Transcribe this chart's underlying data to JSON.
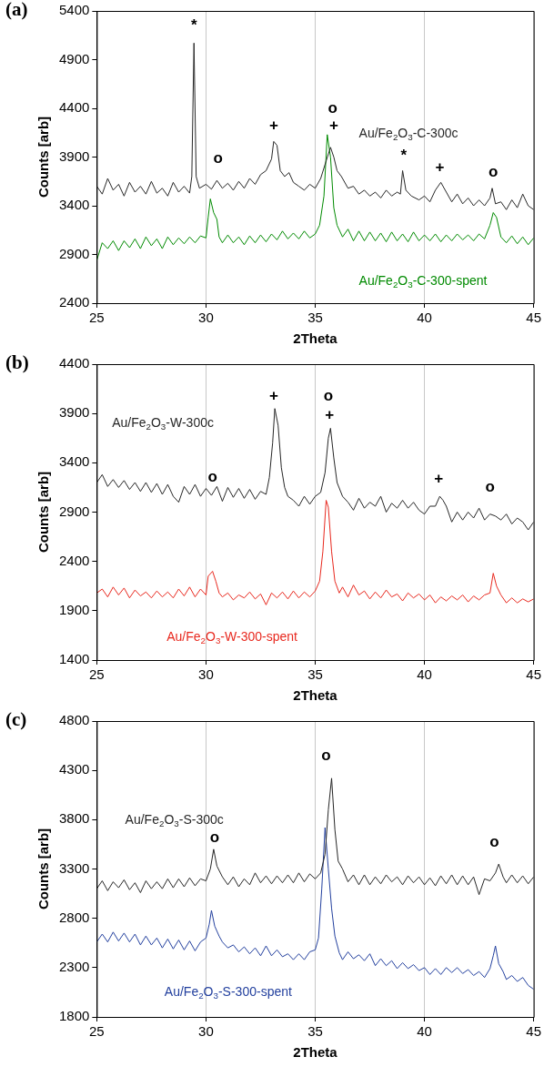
{
  "chart_data": [
    {
      "type": "line",
      "title": "(a)",
      "xlabel": "2Theta",
      "ylabel": "Counts [arb]",
      "xlim": [
        25,
        45
      ],
      "xticks": [
        25,
        30,
        35,
        40,
        45
      ],
      "ylim": [
        2400,
        5400
      ],
      "yticks": [
        2400,
        2900,
        3400,
        3900,
        4400,
        4900,
        5400
      ],
      "grid": "x",
      "series": [
        {
          "name": "Au/Fe$_{2}$O$_{3}$-C-300c",
          "color": "#262626",
          "x": [
            25,
            25.25,
            25.5,
            25.75,
            26,
            26.25,
            26.5,
            26.75,
            27,
            27.25,
            27.5,
            27.75,
            28,
            28.25,
            28.5,
            28.75,
            29,
            29.25,
            29.35,
            29.45,
            29.55,
            29.7,
            30,
            30.25,
            30.5,
            30.75,
            31,
            31.25,
            31.5,
            31.75,
            32,
            32.25,
            32.5,
            32.75,
            33,
            33.1,
            33.25,
            33.4,
            33.6,
            33.8,
            34,
            34.25,
            34.5,
            34.75,
            35,
            35.25,
            35.5,
            35.7,
            35.85,
            36,
            36.2,
            36.5,
            36.75,
            37,
            37.25,
            37.5,
            37.75,
            38,
            38.25,
            38.5,
            38.75,
            38.9,
            39,
            39.15,
            39.4,
            39.75,
            40,
            40.25,
            40.5,
            40.75,
            41,
            41.25,
            41.5,
            41.75,
            42,
            42.25,
            42.5,
            42.75,
            43,
            43.1,
            43.25,
            43.5,
            43.75,
            44,
            44.25,
            44.5,
            44.75,
            45
          ],
          "values": [
            3600,
            3520,
            3680,
            3560,
            3620,
            3500,
            3640,
            3540,
            3600,
            3520,
            3650,
            3530,
            3580,
            3500,
            3640,
            3540,
            3600,
            3530,
            3700,
            5070,
            3700,
            3580,
            3620,
            3570,
            3660,
            3580,
            3630,
            3560,
            3650,
            3580,
            3680,
            3620,
            3720,
            3760,
            3880,
            4060,
            4020,
            3760,
            3700,
            3740,
            3640,
            3600,
            3560,
            3620,
            3580,
            3680,
            3860,
            4000,
            3900,
            3760,
            3700,
            3580,
            3600,
            3520,
            3560,
            3500,
            3540,
            3480,
            3560,
            3500,
            3540,
            3520,
            3760,
            3560,
            3500,
            3460,
            3500,
            3440,
            3560,
            3640,
            3540,
            3440,
            3520,
            3420,
            3480,
            3400,
            3460,
            3400,
            3480,
            3580,
            3420,
            3440,
            3360,
            3460,
            3380,
            3520,
            3400,
            3360
          ]
        },
        {
          "name": "Au/Fe$_{2}$O$_{3}$-C-300-spent",
          "color": "#008a00",
          "x": [
            25,
            25.25,
            25.5,
            25.75,
            26,
            26.25,
            26.5,
            26.75,
            27,
            27.25,
            27.5,
            27.75,
            28,
            28.25,
            28.5,
            28.75,
            29,
            29.25,
            29.5,
            29.75,
            30,
            30.1,
            30.2,
            30.35,
            30.5,
            30.6,
            30.75,
            31,
            31.25,
            31.5,
            31.75,
            32,
            32.25,
            32.5,
            32.75,
            33,
            33.25,
            33.5,
            33.75,
            34,
            34.25,
            34.5,
            34.75,
            35,
            35.2,
            35.4,
            35.55,
            35.7,
            35.85,
            36,
            36.25,
            36.5,
            36.75,
            37,
            37.25,
            37.5,
            37.75,
            38,
            38.25,
            38.5,
            38.75,
            39,
            39.25,
            39.5,
            39.75,
            40,
            40.25,
            40.5,
            40.75,
            41,
            41.25,
            41.5,
            41.75,
            42,
            42.25,
            42.5,
            42.75,
            43,
            43.15,
            43.3,
            43.5,
            43.75,
            44,
            44.25,
            44.5,
            44.75,
            45
          ],
          "values": [
            2840,
            3020,
            2960,
            3040,
            2940,
            3040,
            2970,
            3060,
            2960,
            3080,
            2990,
            3060,
            2960,
            3080,
            3000,
            3070,
            3010,
            3080,
            3020,
            3090,
            3070,
            3280,
            3470,
            3330,
            3260,
            3080,
            3020,
            3100,
            3020,
            3080,
            3000,
            3090,
            3020,
            3100,
            3030,
            3110,
            3050,
            3140,
            3060,
            3120,
            3060,
            3140,
            3070,
            3110,
            3200,
            3500,
            4130,
            3900,
            3380,
            3200,
            3080,
            3160,
            3040,
            3140,
            3040,
            3130,
            3040,
            3120,
            3030,
            3130,
            3040,
            3110,
            3030,
            3130,
            3040,
            3100,
            3040,
            3110,
            3030,
            3100,
            3040,
            3110,
            3050,
            3100,
            3040,
            3110,
            3060,
            3200,
            3330,
            3280,
            3080,
            3020,
            3090,
            3010,
            3080,
            3000,
            3070
          ]
        }
      ],
      "annotations": [
        "*",
        "o",
        "+",
        "o",
        "+",
        "*",
        "+",
        "o"
      ]
    },
    {
      "type": "line",
      "title": "(b)",
      "xlabel": "2Theta",
      "ylabel": "Counts [arb]",
      "xlim": [
        25,
        45
      ],
      "xticks": [
        25,
        30,
        35,
        40,
        45
      ],
      "ylim": [
        1400,
        4400
      ],
      "yticks": [
        1400,
        1900,
        2400,
        2900,
        3400,
        3900,
        4400
      ],
      "grid": "x",
      "series": [
        {
          "name": "Au/Fe$_{2}$O$_{3}$-W-300c",
          "color": "#262626",
          "x": [
            25,
            25.25,
            25.5,
            25.75,
            26,
            26.25,
            26.5,
            26.75,
            27,
            27.25,
            27.5,
            27.75,
            28,
            28.25,
            28.5,
            28.75,
            29,
            29.25,
            29.5,
            29.75,
            30,
            30.25,
            30.5,
            30.75,
            31,
            31.25,
            31.5,
            31.75,
            32,
            32.25,
            32.5,
            32.75,
            32.9,
            33.05,
            33.15,
            33.3,
            33.45,
            33.6,
            33.75,
            34,
            34.25,
            34.5,
            34.75,
            35,
            35.25,
            35.45,
            35.6,
            35.7,
            35.85,
            36,
            36.25,
            36.5,
            36.75,
            37,
            37.25,
            37.5,
            37.75,
            38,
            38.25,
            38.5,
            38.75,
            39,
            39.25,
            39.5,
            39.75,
            40,
            40.25,
            40.5,
            40.7,
            40.85,
            41,
            41.25,
            41.5,
            41.75,
            42,
            42.25,
            42.5,
            42.75,
            43,
            43.25,
            43.5,
            43.75,
            44,
            44.25,
            44.5,
            44.75,
            45
          ],
          "values": [
            3200,
            3280,
            3160,
            3230,
            3150,
            3220,
            3130,
            3200,
            3110,
            3200,
            3100,
            3190,
            3080,
            3180,
            3060,
            3000,
            3160,
            3080,
            3180,
            3060,
            3140,
            3070,
            3160,
            3010,
            3150,
            3050,
            3140,
            3040,
            3130,
            3030,
            3110,
            3080,
            3250,
            3600,
            3950,
            3780,
            3350,
            3150,
            3060,
            3020,
            2960,
            3060,
            2980,
            3060,
            3100,
            3300,
            3650,
            3750,
            3450,
            3200,
            3060,
            3000,
            2920,
            3040,
            2940,
            3000,
            2960,
            3060,
            2900,
            2990,
            2940,
            3020,
            2940,
            3000,
            2920,
            2880,
            2960,
            2960,
            3060,
            3020,
            2960,
            2800,
            2900,
            2820,
            2900,
            2840,
            2940,
            2820,
            2880,
            2860,
            2820,
            2880,
            2780,
            2840,
            2800,
            2720,
            2800
          ]
        },
        {
          "name": "Au/Fe$_{2}$O$_{3}$-W-300-spent",
          "color": "#e8281e",
          "x": [
            25,
            25.25,
            25.5,
            25.75,
            26,
            26.25,
            26.5,
            26.75,
            27,
            27.25,
            27.5,
            27.75,
            28,
            28.25,
            28.5,
            28.75,
            29,
            29.25,
            29.5,
            29.75,
            30,
            30.1,
            30.3,
            30.45,
            30.6,
            30.75,
            31,
            31.25,
            31.5,
            31.75,
            32,
            32.25,
            32.5,
            32.75,
            33,
            33.25,
            33.5,
            33.75,
            34,
            34.25,
            34.5,
            34.75,
            35,
            35.2,
            35.35,
            35.5,
            35.6,
            35.75,
            35.9,
            36.1,
            36.25,
            36.5,
            36.75,
            37,
            37.25,
            37.5,
            37.75,
            38,
            38.25,
            38.5,
            38.75,
            39,
            39.25,
            39.5,
            39.75,
            40,
            40.25,
            40.5,
            40.75,
            41,
            41.25,
            41.5,
            41.75,
            42,
            42.25,
            42.5,
            42.75,
            43,
            43.15,
            43.3,
            43.5,
            43.75,
            44,
            44.25,
            44.5,
            44.75,
            45
          ],
          "values": [
            2080,
            2120,
            2040,
            2140,
            2060,
            2130,
            2030,
            2110,
            2050,
            2090,
            2030,
            2100,
            2040,
            2090,
            2030,
            2120,
            2050,
            2140,
            2040,
            2120,
            2060,
            2250,
            2300,
            2200,
            2080,
            2040,
            2080,
            2010,
            2060,
            2030,
            2090,
            2020,
            2070,
            1960,
            2080,
            2030,
            2090,
            2020,
            2100,
            2030,
            2090,
            2040,
            2100,
            2200,
            2500,
            3020,
            2950,
            2500,
            2200,
            2080,
            2140,
            2040,
            2160,
            2060,
            2100,
            2020,
            2090,
            2030,
            2110,
            2040,
            2070,
            2000,
            2080,
            2030,
            2070,
            2010,
            2060,
            1980,
            2040,
            2000,
            2050,
            2010,
            2060,
            1990,
            2050,
            2010,
            2060,
            2080,
            2280,
            2150,
            2060,
            1980,
            2030,
            1980,
            2020,
            1990,
            2020
          ]
        }
      ],
      "annotations": [
        "o",
        "+",
        "o",
        "+",
        "+",
        "o"
      ]
    },
    {
      "type": "line",
      "title": "(c)",
      "xlabel": "2Theta",
      "ylabel": "Counts [arb]",
      "xlim": [
        25,
        45
      ],
      "xticks": [
        25,
        30,
        35,
        40,
        45
      ],
      "ylim": [
        1800,
        4800
      ],
      "yticks": [
        1800,
        2300,
        2800,
        3300,
        3800,
        4300,
        4800
      ],
      "grid": "x",
      "series": [
        {
          "name": "Au/Fe$_{2}$O$_{3}$-S-300c",
          "color": "#262626",
          "x": [
            25,
            25.25,
            25.5,
            25.75,
            26,
            26.25,
            26.5,
            26.75,
            27,
            27.25,
            27.5,
            27.75,
            28,
            28.25,
            28.5,
            28.75,
            29,
            29.25,
            29.5,
            29.75,
            30,
            30.2,
            30.35,
            30.5,
            30.75,
            31,
            31.25,
            31.5,
            31.75,
            32,
            32.25,
            32.5,
            32.75,
            33,
            33.25,
            33.5,
            33.75,
            34,
            34.25,
            34.5,
            34.75,
            35,
            35.25,
            35.45,
            35.6,
            35.75,
            35.9,
            36.05,
            36.25,
            36.5,
            36.75,
            37,
            37.25,
            37.5,
            37.75,
            38,
            38.25,
            38.5,
            38.75,
            39,
            39.25,
            39.5,
            39.75,
            40,
            40.25,
            40.5,
            40.75,
            41,
            41.25,
            41.5,
            41.75,
            42,
            42.25,
            42.5,
            42.75,
            43,
            43.25,
            43.4,
            43.6,
            43.75,
            44,
            44.25,
            44.5,
            44.75,
            45
          ],
          "values": [
            3100,
            3180,
            3080,
            3170,
            3110,
            3190,
            3090,
            3160,
            3060,
            3180,
            3100,
            3170,
            3100,
            3200,
            3110,
            3200,
            3120,
            3210,
            3130,
            3200,
            3180,
            3300,
            3500,
            3330,
            3220,
            3140,
            3220,
            3120,
            3200,
            3140,
            3260,
            3160,
            3230,
            3150,
            3230,
            3160,
            3240,
            3160,
            3260,
            3170,
            3250,
            3200,
            3260,
            3450,
            3900,
            4220,
            3700,
            3380,
            3300,
            3170,
            3240,
            3140,
            3240,
            3140,
            3220,
            3150,
            3240,
            3170,
            3220,
            3140,
            3230,
            3160,
            3220,
            3140,
            3210,
            3130,
            3230,
            3150,
            3240,
            3140,
            3230,
            3140,
            3220,
            3040,
            3200,
            3180,
            3260,
            3350,
            3220,
            3160,
            3240,
            3160,
            3230,
            3150,
            3220
          ]
        },
        {
          "name": "Au/Fe$_{2}$O$_{3}$-S-300-spent",
          "color": "#23409e",
          "x": [
            25,
            25.25,
            25.5,
            25.75,
            26,
            26.25,
            26.5,
            26.75,
            27,
            27.25,
            27.5,
            27.75,
            28,
            28.25,
            28.5,
            28.75,
            29,
            29.25,
            29.5,
            29.75,
            30,
            30.15,
            30.25,
            30.4,
            30.6,
            30.75,
            31,
            31.25,
            31.5,
            31.75,
            32,
            32.25,
            32.5,
            32.75,
            33,
            33.25,
            33.5,
            33.75,
            34,
            34.25,
            34.5,
            34.75,
            35,
            35.15,
            35.3,
            35.45,
            35.6,
            35.75,
            35.9,
            36.1,
            36.25,
            36.5,
            36.75,
            37,
            37.25,
            37.5,
            37.75,
            38,
            38.25,
            38.5,
            38.75,
            39,
            39.25,
            39.5,
            39.75,
            40,
            40.25,
            40.5,
            40.75,
            41,
            41.25,
            41.5,
            41.75,
            42,
            42.25,
            42.5,
            42.75,
            43,
            43.15,
            43.25,
            43.4,
            43.6,
            43.75,
            44,
            44.25,
            44.5,
            44.75,
            45
          ],
          "values": [
            2560,
            2640,
            2560,
            2660,
            2570,
            2650,
            2560,
            2640,
            2530,
            2620,
            2530,
            2600,
            2500,
            2590,
            2490,
            2580,
            2480,
            2570,
            2470,
            2560,
            2600,
            2740,
            2880,
            2720,
            2620,
            2560,
            2500,
            2530,
            2460,
            2510,
            2440,
            2500,
            2420,
            2520,
            2420,
            2480,
            2410,
            2440,
            2380,
            2440,
            2380,
            2460,
            2480,
            2600,
            3100,
            3720,
            3300,
            2900,
            2620,
            2450,
            2380,
            2460,
            2390,
            2430,
            2370,
            2440,
            2320,
            2390,
            2320,
            2370,
            2290,
            2350,
            2290,
            2330,
            2270,
            2300,
            2230,
            2290,
            2230,
            2300,
            2250,
            2300,
            2240,
            2280,
            2220,
            2260,
            2200,
            2290,
            2420,
            2520,
            2340,
            2260,
            2180,
            2220,
            2160,
            2200,
            2120,
            2080
          ]
        }
      ],
      "annotations": [
        "o",
        "o",
        "o"
      ]
    }
  ]
}
